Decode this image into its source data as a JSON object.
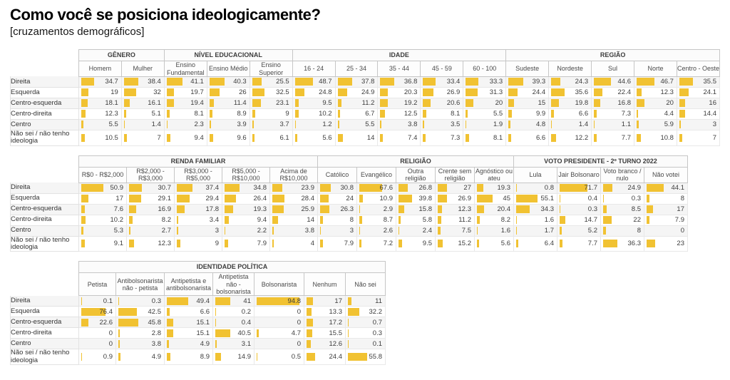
{
  "page": {
    "title": "Como você se posiciona ideologicamente?",
    "subtitle": "[cruzamentos demográficos]"
  },
  "colors": {
    "bar": "#F1C232",
    "stripe": "#F5F5F5"
  },
  "row_labels": [
    "Direita",
    "Esquerda",
    "Centro-esquerda",
    "Centro-direita",
    "Centro",
    "Não sei / não tenho ideologia"
  ],
  "chart_data": [
    {
      "type": "table",
      "title": "Como você se posiciona ideologicamente? [cruzamentos demográficos] — bloco 1",
      "groups": [
        {
          "label": "GÊNERO",
          "columns": [
            "Homem",
            "Mulher"
          ]
        },
        {
          "label": "NÍVEL EDUCACIONAL",
          "columns": [
            "Ensino Fundamental",
            "Ensino Médio",
            "Ensino Superior"
          ]
        },
        {
          "label": "IDADE",
          "columns": [
            "16 - 24",
            "25 - 34",
            "35 - 44",
            "45 - 59",
            "60 - 100"
          ]
        },
        {
          "label": "REGIÃO",
          "columns": [
            "Sudeste",
            "Nordeste",
            "Sul",
            "Norte",
            "Centro - Oeste"
          ]
        }
      ],
      "rows": [
        {
          "label": "Direita",
          "values": [
            34.7,
            38.4,
            41.1,
            40.3,
            25.5,
            48.7,
            37.8,
            36.8,
            33.4,
            33.3,
            39.3,
            24.3,
            44.6,
            46.7,
            35.5
          ]
        },
        {
          "label": "Esquerda",
          "values": [
            19,
            32,
            19.7,
            26,
            32.5,
            24.8,
            24.9,
            20.3,
            26.9,
            31.3,
            24.4,
            35.6,
            22.4,
            12.3,
            24.1
          ]
        },
        {
          "label": "Centro-esquerda",
          "values": [
            18.1,
            16.1,
            19.4,
            11.4,
            23.1,
            9.5,
            11.2,
            19.2,
            20.6,
            20,
            15,
            19.8,
            16.8,
            20,
            16
          ]
        },
        {
          "label": "Centro-direita",
          "values": [
            12.3,
            5.1,
            8.1,
            8.9,
            9,
            10.2,
            6.7,
            12.5,
            8.1,
            5.5,
            9.9,
            6.6,
            7.3,
            4.4,
            14.4
          ]
        },
        {
          "label": "Centro",
          "values": [
            5.5,
            1.4,
            2.3,
            3.9,
            3.7,
            1.2,
            5.5,
            3.8,
            3.5,
            1.9,
            4.8,
            1.4,
            1.1,
            5.9,
            3
          ]
        },
        {
          "label": "Não sei / não tenho ideologia",
          "values": [
            10.5,
            7,
            9.4,
            9.6,
            6.1,
            5.6,
            14,
            7.4,
            7.3,
            8.1,
            6.6,
            12.2,
            7.7,
            10.8,
            7
          ]
        }
      ]
    },
    {
      "type": "table",
      "title": "Como você se posiciona ideologicamente? [cruzamentos demográficos] — bloco 2",
      "groups": [
        {
          "label": "RENDA FAMILIAR",
          "columns": [
            "R$0 - R$2,000",
            "R$2,000 - R$3,000",
            "R$3,000 - R$5,000",
            "R$5,000 - R$10,000",
            "Acima de R$10,000"
          ]
        },
        {
          "label": "RELIGIÃO",
          "columns": [
            "Católico",
            "Evangélico",
            "Outra religião",
            "Crente sem religião",
            "Agnóstico ou ateu"
          ]
        },
        {
          "label": "VOTO PRESIDENTE - 2º TURNO 2022",
          "columns": [
            "Lula",
            "Jair Bolsonaro",
            "Voto branco / nulo",
            "Não votei"
          ]
        }
      ],
      "rows": [
        {
          "label": "Direita",
          "values": [
            50.9,
            30.7,
            37.4,
            34.8,
            23.9,
            30.8,
            67.6,
            26.8,
            27,
            19.3,
            0.8,
            71.7,
            24.9,
            44.1
          ]
        },
        {
          "label": "Esquerda",
          "values": [
            17,
            29.1,
            29.4,
            26.4,
            28.4,
            24,
            10.9,
            39.8,
            26.9,
            45,
            55.1,
            0.4,
            0.3,
            8
          ]
        },
        {
          "label": "Centro-esquerda",
          "values": [
            7.6,
            16.9,
            17.8,
            19.3,
            25.9,
            26.3,
            2.9,
            15.8,
            12.3,
            20.4,
            34.3,
            0.3,
            8.5,
            17
          ]
        },
        {
          "label": "Centro-direita",
          "values": [
            10.2,
            8.2,
            3.4,
            9.4,
            14,
            8,
            8.7,
            5.8,
            11.2,
            8.2,
            1.6,
            14.7,
            22,
            7.9
          ]
        },
        {
          "label": "Centro",
          "values": [
            5.3,
            2.7,
            3,
            2.2,
            3.8,
            3,
            2.6,
            2.4,
            7.5,
            1.6,
            1.7,
            5.2,
            8,
            0
          ]
        },
        {
          "label": "Não sei / não tenho ideologia",
          "values": [
            9.1,
            12.3,
            9,
            7.9,
            4,
            7.9,
            7.2,
            9.5,
            15.2,
            5.6,
            6.4,
            7.7,
            36.3,
            23
          ]
        }
      ]
    },
    {
      "type": "table",
      "title": "Como você se posiciona ideologicamente? [cruzamentos demográficos] — bloco 3",
      "groups": [
        {
          "label": "IDENTIDADE POLÍTICA",
          "columns": [
            "Petista",
            "Antibolsonarista não - petista",
            "Antipetista e antibolsonarista",
            "Antipetista não - bolsonarista",
            "Bolsonarista",
            "Nenhum",
            "Não sei"
          ]
        }
      ],
      "rows": [
        {
          "label": "Direita",
          "values": [
            0.1,
            0.3,
            49.4,
            41,
            94.8,
            17,
            11
          ]
        },
        {
          "label": "Esquerda",
          "values": [
            76.4,
            42.5,
            6.6,
            0.2,
            0,
            13.3,
            32.2
          ]
        },
        {
          "label": "Centro-esquerda",
          "values": [
            22.6,
            45.8,
            15.1,
            0.4,
            0,
            17.2,
            0.7
          ]
        },
        {
          "label": "Centro-direita",
          "values": [
            0,
            2.8,
            15.1,
            40.5,
            4.7,
            15.5,
            0.3
          ]
        },
        {
          "label": "Centro",
          "values": [
            0,
            3.8,
            4.9,
            3.1,
            0,
            12.6,
            0.1
          ]
        },
        {
          "label": "Não sei / não tenho ideologia",
          "values": [
            0.9,
            4.9,
            8.9,
            14.9,
            0.5,
            24.4,
            55.8
          ]
        }
      ]
    }
  ]
}
